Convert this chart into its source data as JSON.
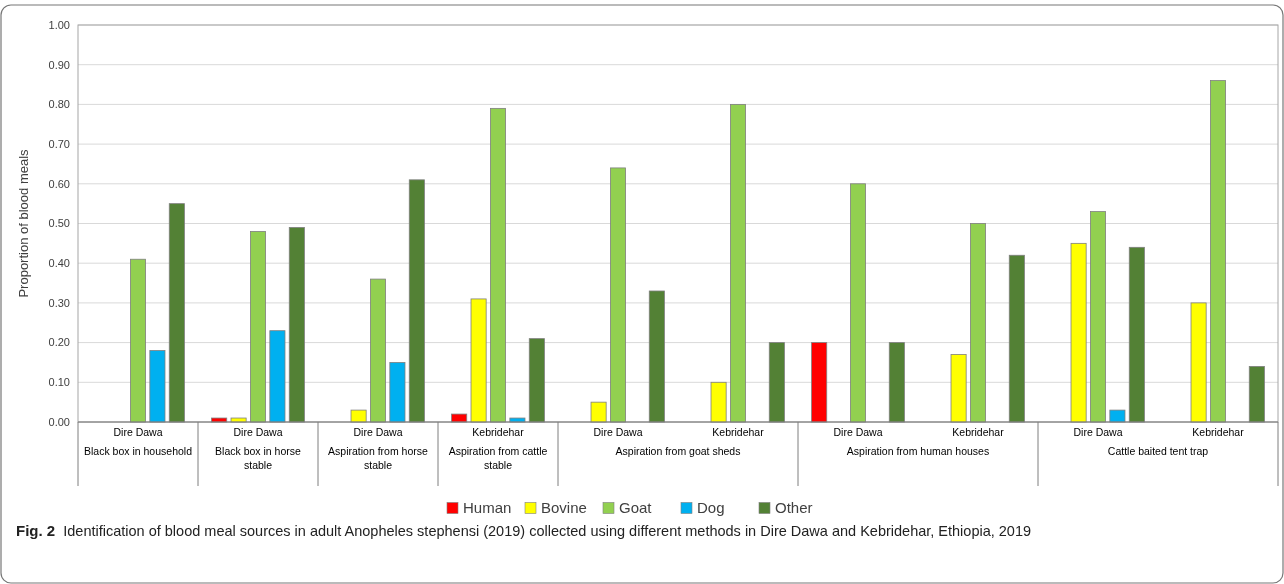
{
  "chart_data": {
    "type": "bar",
    "title": "Fig. 2 Identification of blood meal sources in adult Anopheles stephensi (2019) collected using different methods in Dire Dawa and Kebridehar, Ethiopia, 2019",
    "ylabel": "Proportion of blood meals",
    "categories": [
      "Dire Dawa",
      "Dire Dawa",
      "Dire Dawa",
      "Kebridehar",
      "Dire Dawa",
      "Kebridehar",
      "Dire Dawa",
      "Kebridehar",
      "Dire Dawa",
      "Kebridehar"
    ],
    "annotations": [
      "Black box in household",
      "Black box in horse stable",
      "Aspiration from horse stable",
      "Aspiration from cattle stable",
      "Aspiration from goat sheds",
      "Aspiration from human houses",
      "Cattle baited tent trap"
    ],
    "series": [
      {
        "name": "Human",
        "color": "#ff0000",
        "values": [
          null,
          0.01,
          null,
          0.02,
          null,
          null,
          0.2,
          null,
          null,
          null
        ]
      },
      {
        "name": "Bovine",
        "color": "#ffff00",
        "values": [
          null,
          0.01,
          0.03,
          0.31,
          0.05,
          0.1,
          null,
          0.17,
          0.45,
          0.3
        ]
      },
      {
        "name": "Goat",
        "color": "#92d050",
        "values": [
          0.41,
          0.48,
          0.36,
          0.79,
          0.64,
          0.8,
          0.6,
          0.5,
          0.53,
          0.86
        ]
      },
      {
        "name": "Dog",
        "color": "#00b0f0",
        "values": [
          0.18,
          0.23,
          0.15,
          0.01,
          null,
          null,
          null,
          null,
          0.03,
          null
        ]
      },
      {
        "name": "Other",
        "color": "#538135",
        "values": [
          0.55,
          0.49,
          0.61,
          0.21,
          0.33,
          0.2,
          0.2,
          0.42,
          0.44,
          0.14
        ]
      }
    ],
    "ylim": [
      0,
      1
    ],
    "yticks": [
      {
        "value": 0,
        "label": "0.00"
      },
      {
        "value": 0.1,
        "label": "0.10"
      },
      {
        "value": 0.2,
        "label": "0.20"
      },
      {
        "value": 0.3,
        "label": "0.30"
      },
      {
        "value": 0.4,
        "label": "0.40"
      },
      {
        "value": 0.5,
        "label": "0.50"
      },
      {
        "value": 0.6,
        "label": "0.60"
      },
      {
        "value": 0.7,
        "label": "0.70"
      },
      {
        "value": 0.8,
        "label": "0.80"
      },
      {
        "value": 0.9,
        "label": "0.90"
      },
      {
        "value": 1,
        "label": "1.00"
      }
    ],
    "grid": "y",
    "legend": "bottom"
  }
}
